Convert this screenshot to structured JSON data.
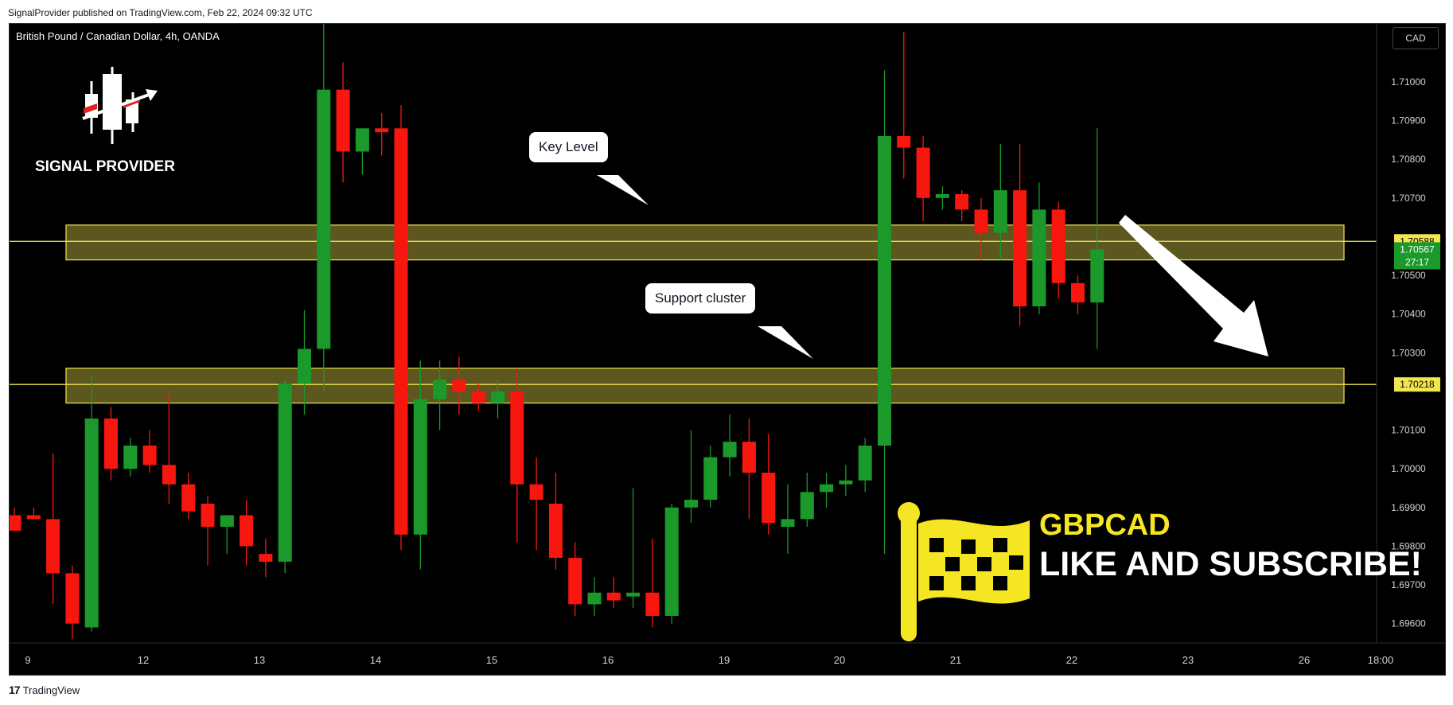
{
  "header": {
    "published_text": "SignalProvider published on TradingView.com, Feb 22, 2024 09:32 UTC"
  },
  "footer": {
    "brand_logo": "17",
    "brand_name": "TradingView"
  },
  "chart_header": {
    "symbol_title": "British Pound / Canadian Dollar, 4h, OANDA",
    "currency": "CAD"
  },
  "brand": {
    "name": "SIGNAL PROVIDER"
  },
  "annotations": {
    "key_level": "Key Level",
    "support_cluster": "Support cluster",
    "ticker": "GBPCAD",
    "cta": "LIKE AND SUBSCRIBE!"
  },
  "colors": {
    "up": "#1b9a2b",
    "down": "#f7170f",
    "zone": "#f2e64f",
    "background": "#000000",
    "price_tag": "#1b9a2b"
  },
  "chart_data": {
    "type": "candlestick",
    "title": "British Pound / Canadian Dollar, 4h, OANDA",
    "ylim": [
      1.6955,
      1.7115
    ],
    "y_ticks": [
      "1.71000",
      "1.70900",
      "1.70800",
      "1.70700",
      "1.70500",
      "1.70400",
      "1.70300",
      "1.70100",
      "1.70000",
      "1.69900",
      "1.69800",
      "1.69700",
      "1.69600"
    ],
    "x_ticks": [
      "9",
      "12",
      "13",
      "14",
      "15",
      "16",
      "19",
      "20",
      "21",
      "22",
      "23",
      "26",
      "18:00"
    ],
    "candles": [
      {
        "o": 1.6988,
        "h": 1.699,
        "l": 1.6984,
        "c": 1.6984
      },
      {
        "o": 1.6988,
        "h": 1.699,
        "l": 1.6987,
        "c": 1.6987
      },
      {
        "o": 1.6987,
        "h": 1.7004,
        "l": 1.6965,
        "c": 1.6973
      },
      {
        "o": 1.6973,
        "h": 1.6975,
        "l": 1.6956,
        "c": 1.696
      },
      {
        "o": 1.6959,
        "h": 1.7024,
        "l": 1.6958,
        "c": 1.7013
      },
      {
        "o": 1.7013,
        "h": 1.7016,
        "l": 1.6997,
        "c": 1.7
      },
      {
        "o": 1.7,
        "h": 1.7008,
        "l": 1.6998,
        "c": 1.7006
      },
      {
        "o": 1.7006,
        "h": 1.701,
        "l": 1.6999,
        "c": 1.7001
      },
      {
        "o": 1.7001,
        "h": 1.702,
        "l": 1.6991,
        "c": 1.6996
      },
      {
        "o": 1.6996,
        "h": 1.6999,
        "l": 1.6987,
        "c": 1.6989
      },
      {
        "o": 1.6991,
        "h": 1.6993,
        "l": 1.6975,
        "c": 1.6985
      },
      {
        "o": 1.6985,
        "h": 1.6988,
        "l": 1.6978,
        "c": 1.6988
      },
      {
        "o": 1.6988,
        "h": 1.6992,
        "l": 1.6975,
        "c": 1.698
      },
      {
        "o": 1.6978,
        "h": 1.6982,
        "l": 1.6972,
        "c": 1.6976
      },
      {
        "o": 1.6976,
        "h": 1.7023,
        "l": 1.6973,
        "c": 1.7022
      },
      {
        "o": 1.7022,
        "h": 1.7041,
        "l": 1.7014,
        "c": 1.7031
      },
      {
        "o": 1.7031,
        "h": 1.7115,
        "l": 1.702,
        "c": 1.7098
      },
      {
        "o": 1.7098,
        "h": 1.7105,
        "l": 1.7074,
        "c": 1.7082
      },
      {
        "o": 1.7082,
        "h": 1.7088,
        "l": 1.7076,
        "c": 1.7088
      },
      {
        "o": 1.7088,
        "h": 1.7092,
        "l": 1.7081,
        "c": 1.7087
      },
      {
        "o": 1.7088,
        "h": 1.7094,
        "l": 1.6979,
        "c": 1.6983
      },
      {
        "o": 1.6983,
        "h": 1.7028,
        "l": 1.6974,
        "c": 1.7018
      },
      {
        "o": 1.7018,
        "h": 1.7028,
        "l": 1.701,
        "c": 1.7023
      },
      {
        "o": 1.7023,
        "h": 1.7029,
        "l": 1.7014,
        "c": 1.702
      },
      {
        "o": 1.702,
        "h": 1.7022,
        "l": 1.7015,
        "c": 1.7017
      },
      {
        "o": 1.7017,
        "h": 1.7023,
        "l": 1.7013,
        "c": 1.702
      },
      {
        "o": 1.702,
        "h": 1.7026,
        "l": 1.6981,
        "c": 1.6996
      },
      {
        "o": 1.6996,
        "h": 1.7003,
        "l": 1.6979,
        "c": 1.6992
      },
      {
        "o": 1.6991,
        "h": 1.6999,
        "l": 1.6974,
        "c": 1.6977
      },
      {
        "o": 1.6977,
        "h": 1.6981,
        "l": 1.6962,
        "c": 1.6965
      },
      {
        "o": 1.6965,
        "h": 1.6972,
        "l": 1.6962,
        "c": 1.6968
      },
      {
        "o": 1.6968,
        "h": 1.6972,
        "l": 1.6964,
        "c": 1.6966
      },
      {
        "o": 1.6967,
        "h": 1.6995,
        "l": 1.6964,
        "c": 1.6968
      },
      {
        "o": 1.6968,
        "h": 1.6982,
        "l": 1.6959,
        "c": 1.6962
      },
      {
        "o": 1.6962,
        "h": 1.6991,
        "l": 1.696,
        "c": 1.699
      },
      {
        "o": 1.699,
        "h": 1.701,
        "l": 1.6986,
        "c": 1.6992
      },
      {
        "o": 1.6992,
        "h": 1.7006,
        "l": 1.699,
        "c": 1.7003
      },
      {
        "o": 1.7003,
        "h": 1.7014,
        "l": 1.6998,
        "c": 1.7007
      },
      {
        "o": 1.7007,
        "h": 1.7013,
        "l": 1.6987,
        "c": 1.6999
      },
      {
        "o": 1.6999,
        "h": 1.7009,
        "l": 1.6983,
        "c": 1.6986
      },
      {
        "o": 1.6985,
        "h": 1.6996,
        "l": 1.6978,
        "c": 1.6987
      },
      {
        "o": 1.6987,
        "h": 1.6999,
        "l": 1.6985,
        "c": 1.6994
      },
      {
        "o": 1.6994,
        "h": 1.6999,
        "l": 1.699,
        "c": 1.6996
      },
      {
        "o": 1.6996,
        "h": 1.7001,
        "l": 1.6993,
        "c": 1.6997
      },
      {
        "o": 1.6997,
        "h": 1.7008,
        "l": 1.6994,
        "c": 1.7006
      },
      {
        "o": 1.7006,
        "h": 1.7103,
        "l": 1.6978,
        "c": 1.7086
      },
      {
        "o": 1.7086,
        "h": 1.7113,
        "l": 1.7075,
        "c": 1.7083
      },
      {
        "o": 1.7083,
        "h": 1.7086,
        "l": 1.7064,
        "c": 1.707
      },
      {
        "o": 1.707,
        "h": 1.7073,
        "l": 1.7067,
        "c": 1.7071
      },
      {
        "o": 1.7071,
        "h": 1.7072,
        "l": 1.7064,
        "c": 1.7067
      },
      {
        "o": 1.7067,
        "h": 1.707,
        "l": 1.7054,
        "c": 1.7061
      },
      {
        "o": 1.7061,
        "h": 1.7084,
        "l": 1.7054,
        "c": 1.7072
      },
      {
        "o": 1.7072,
        "h": 1.7084,
        "l": 1.7037,
        "c": 1.7042
      },
      {
        "o": 1.7042,
        "h": 1.7074,
        "l": 1.704,
        "c": 1.7067
      },
      {
        "o": 1.7067,
        "h": 1.7069,
        "l": 1.7044,
        "c": 1.7048
      },
      {
        "o": 1.7048,
        "h": 1.705,
        "l": 1.704,
        "c": 1.7043
      },
      {
        "o": 1.7043,
        "h": 1.7088,
        "l": 1.7031,
        "c": 1.70567
      }
    ],
    "zones": [
      {
        "label": "Key Level",
        "from": 1.7054,
        "to": 1.7063
      },
      {
        "label": "Support cluster",
        "from": 1.7017,
        "to": 1.7026
      }
    ],
    "horizontal_lines": [
      {
        "value": 1.70588,
        "label": "1.70588"
      },
      {
        "value": 1.70218,
        "label": "1.70218"
      }
    ],
    "last_price": {
      "value": "1.70567",
      "countdown": "27:17"
    }
  }
}
